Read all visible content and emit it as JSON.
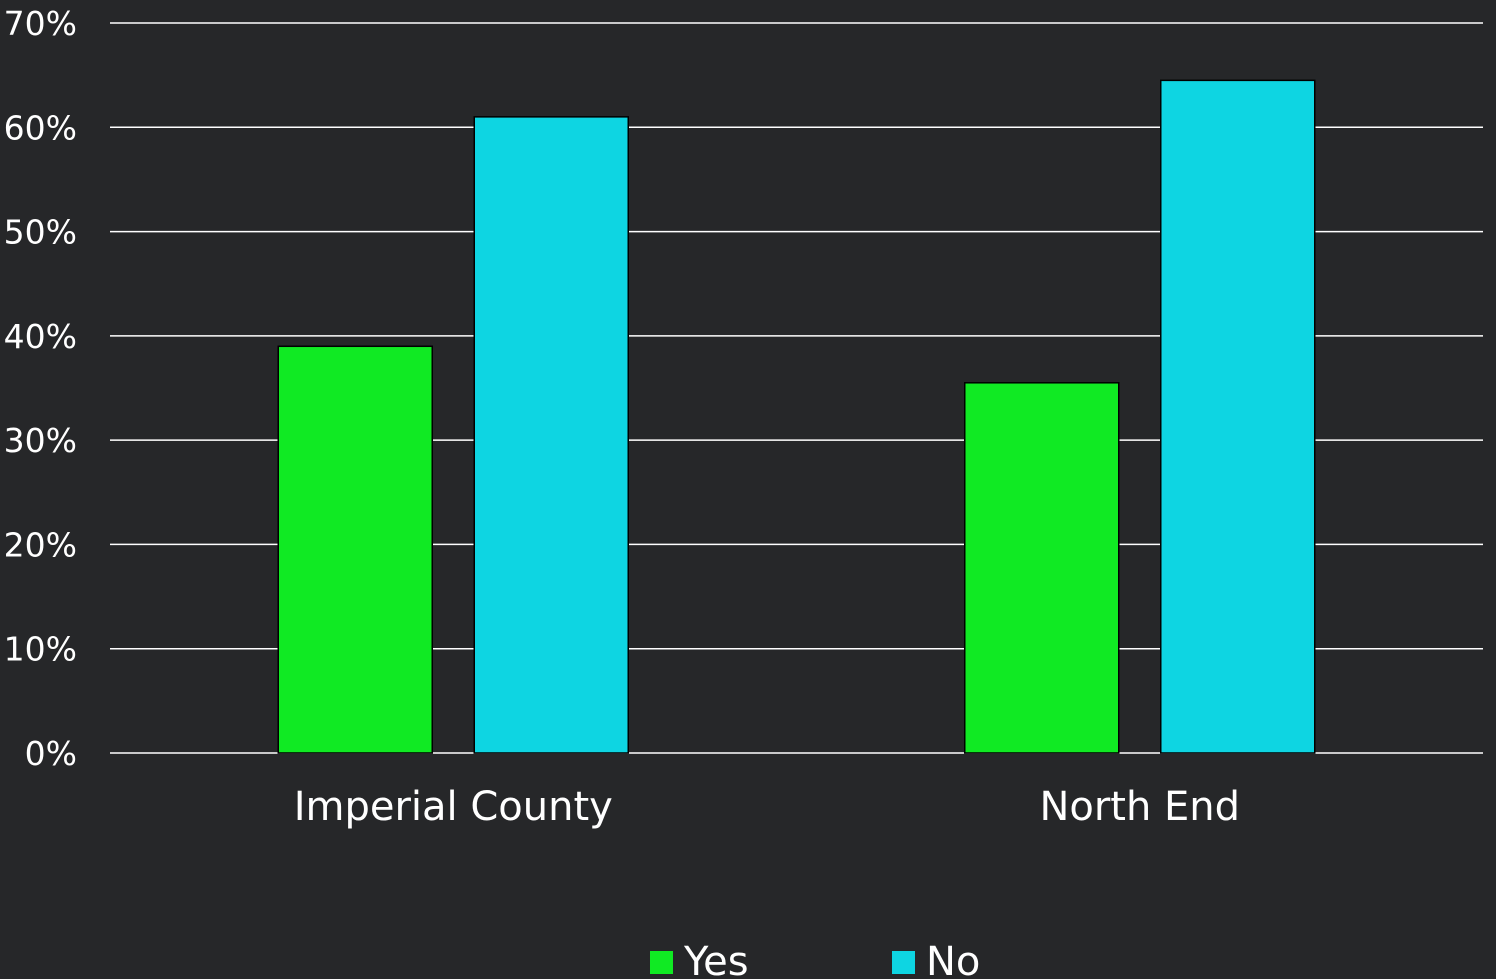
{
  "chart_data": {
    "type": "bar",
    "categories": [
      "Imperial County",
      "North End"
    ],
    "series": [
      {
        "name": "Yes",
        "values": [
          39,
          35.5
        ],
        "color": "#10ea23"
      },
      {
        "name": "No",
        "values": [
          61,
          64.5
        ],
        "color": "#0ed5e2"
      }
    ],
    "ylim": [
      0,
      70
    ],
    "yticks": [
      0,
      10,
      20,
      30,
      40,
      50,
      60,
      70
    ],
    "ytick_labels": [
      "0%",
      "10%",
      "20%",
      "30%",
      "40%",
      "50%",
      "60%",
      "70%"
    ],
    "grid": true,
    "legend_position": "bottom-center",
    "colors": {
      "background": "#262729",
      "grid": "#ffffff",
      "text": "#ffffff"
    }
  }
}
